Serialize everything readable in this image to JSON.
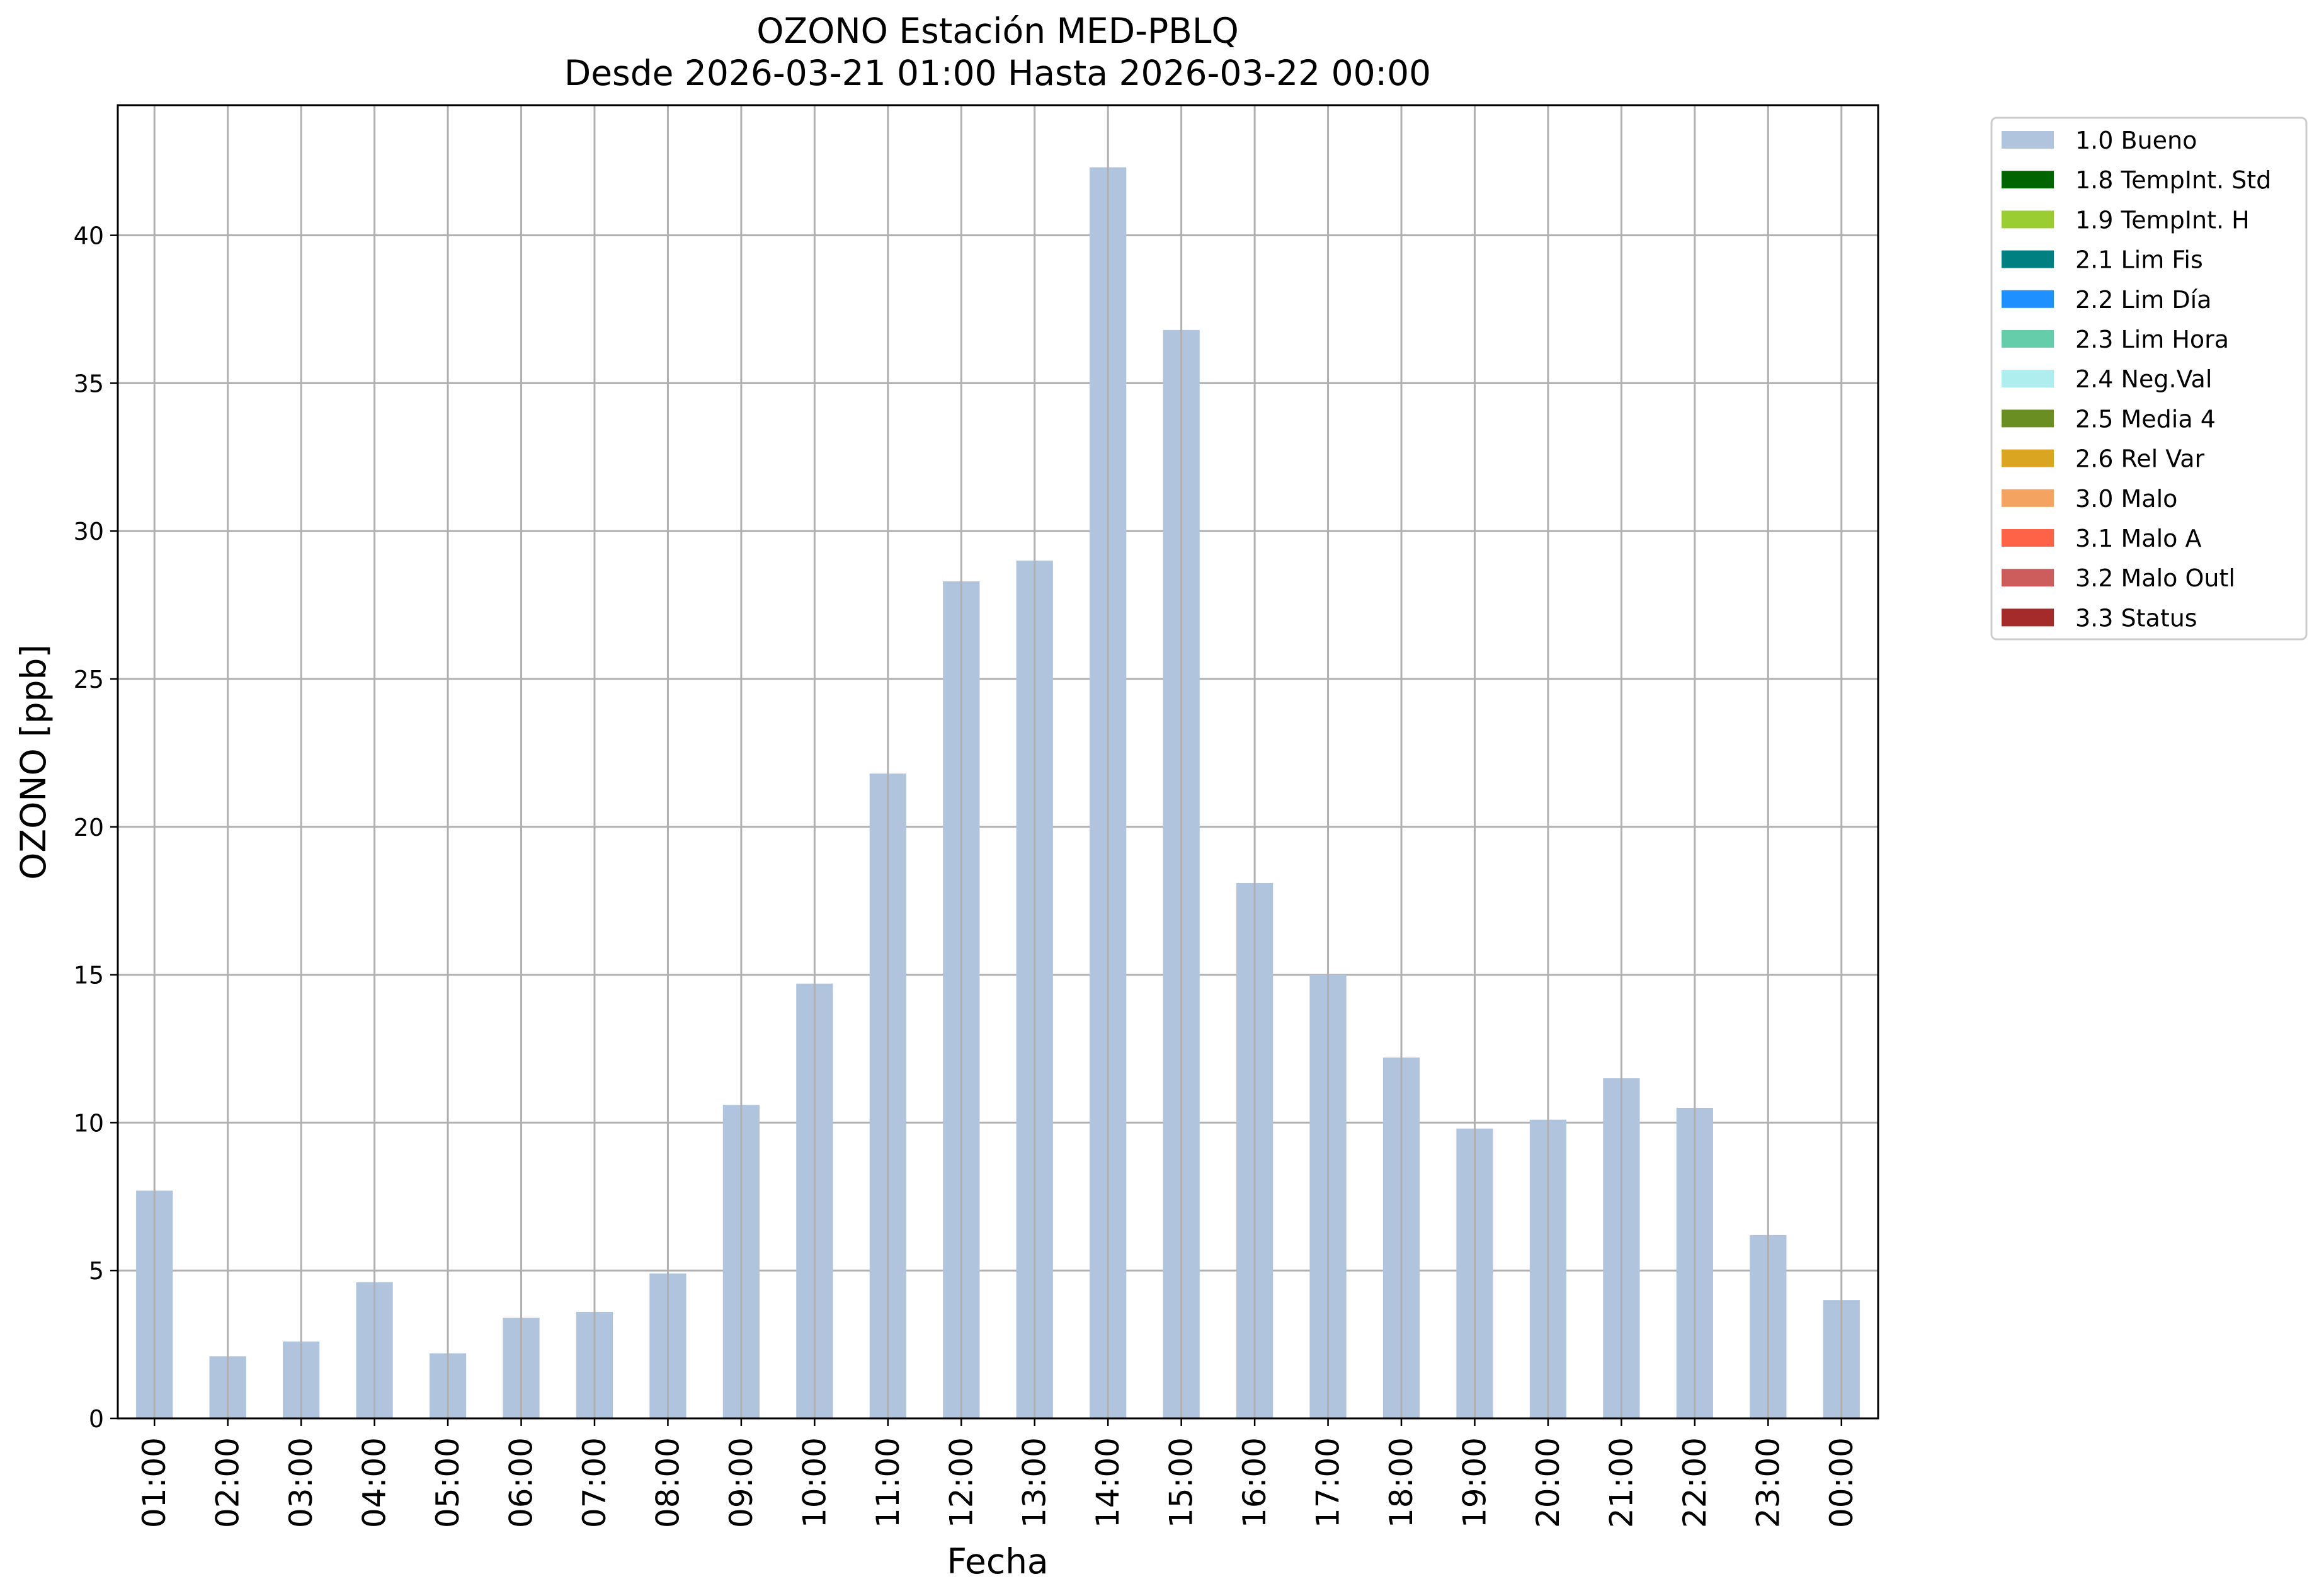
{
  "chart_data": {
    "type": "bar",
    "title": "OZONO Estación MED-PBLQ",
    "subtitle": "Desde 2026-03-21 01:00 Hasta 2026-03-22 00:00",
    "xlabel": "Fecha",
    "ylabel": "OZONO [ppb]",
    "ylim": [
      0,
      44.4
    ],
    "yticks": [
      0,
      5,
      10,
      15,
      20,
      25,
      30,
      35,
      40
    ],
    "grid": true,
    "legend_position": "outside-right-top",
    "categories": [
      "01:00",
      "02:00",
      "03:00",
      "04:00",
      "05:00",
      "06:00",
      "07:00",
      "08:00",
      "09:00",
      "10:00",
      "11:00",
      "12:00",
      "13:00",
      "14:00",
      "15:00",
      "16:00",
      "17:00",
      "18:00",
      "19:00",
      "20:00",
      "21:00",
      "22:00",
      "23:00",
      "00:00"
    ],
    "series": [
      {
        "name": "1.0 Bueno",
        "color": "#b0c4de",
        "values": [
          7.7,
          2.1,
          2.6,
          4.6,
          2.2,
          3.4,
          3.6,
          4.9,
          10.6,
          14.7,
          21.8,
          28.3,
          29.0,
          42.3,
          36.8,
          18.1,
          15.0,
          12.2,
          9.8,
          10.1,
          11.5,
          10.5,
          6.2,
          4.0
        ]
      }
    ],
    "legend": [
      {
        "label": "1.0 Bueno",
        "color": "#b0c4de"
      },
      {
        "label": "1.8 TempInt. Std",
        "color": "#006400"
      },
      {
        "label": "1.9 TempInt. H",
        "color": "#9acd32"
      },
      {
        "label": "2.1 Lim Fis",
        "color": "#008080"
      },
      {
        "label": "2.2 Lim Día",
        "color": "#1e90ff"
      },
      {
        "label": "2.3 Lim Hora",
        "color": "#66cdaa"
      },
      {
        "label": "2.4 Neg.Val",
        "color": "#afeeee"
      },
      {
        "label": "2.5 Media 4",
        "color": "#6b8e23"
      },
      {
        "label": "2.6 Rel Var",
        "color": "#daa520"
      },
      {
        "label": "3.0 Malo",
        "color": "#f4a460"
      },
      {
        "label": "3.1 Malo A",
        "color": "#ff6347"
      },
      {
        "label": "3.2 Malo Outl",
        "color": "#cd5c5c"
      },
      {
        "label": "3.3 Status",
        "color": "#a52a2a"
      }
    ]
  }
}
